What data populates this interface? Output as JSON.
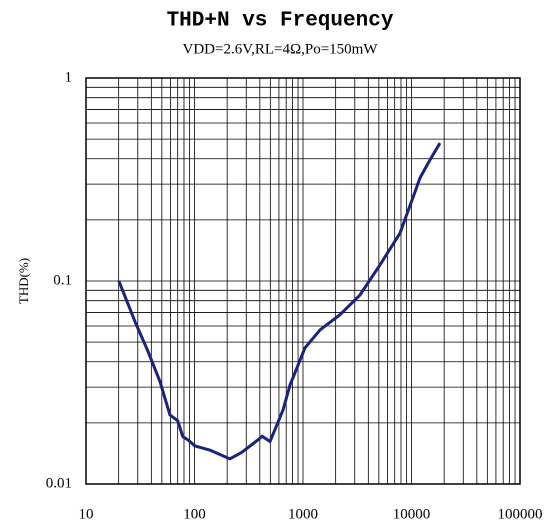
{
  "chart_data": {
    "type": "line",
    "title": "THD+N vs Frequency",
    "subtitle": "VDD=2.6V,RL=4Ω,Po=150mW",
    "ylabel": "THD(%)",
    "x": [
      20.1,
      28.3,
      37.3,
      48,
      59.4,
      70,
      78,
      87,
      101,
      138,
      212,
      272,
      385,
      419,
      497,
      655,
      759,
      1042,
      1435,
      2193,
      3350,
      5120,
      7830,
      10540,
      11980,
      14800,
      18300
    ],
    "series": [
      {
        "name": "THD+N",
        "color": "#1a237e",
        "values": [
          0.1,
          0.063,
          0.045,
          0.032,
          0.0219,
          0.0205,
          0.0171,
          0.0165,
          0.0154,
          0.0147,
          0.0133,
          0.0143,
          0.0165,
          0.0172,
          0.0162,
          0.0232,
          0.0307,
          0.0468,
          0.0574,
          0.0682,
          0.0853,
          0.12,
          0.172,
          0.266,
          0.322,
          0.395,
          0.478
        ]
      }
    ],
    "xlim": [
      10,
      100000
    ],
    "xticks": [
      10,
      100,
      1000,
      10000,
      100000
    ],
    "ylim": [
      0.01,
      1
    ],
    "yticks": [
      0.01,
      0.1,
      1
    ],
    "xscale": "log",
    "yscale": "log",
    "grid": true,
    "minor_grid": true
  }
}
